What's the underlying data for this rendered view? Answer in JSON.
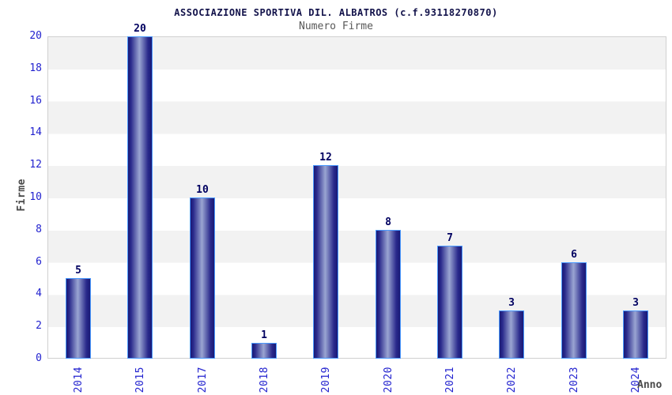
{
  "chart_data": {
    "type": "bar",
    "title": "ASSOCIAZIONE SPORTIVA DIL. ALBATROS (c.f.93118270870)",
    "subtitle": "Numero Firme",
    "xlabel": "Anno",
    "ylabel": "Firme",
    "categories": [
      "2014",
      "2015",
      "2017",
      "2018",
      "2019",
      "2020",
      "2021",
      "2022",
      "2023",
      "2024"
    ],
    "values": [
      5,
      20,
      10,
      1,
      12,
      8,
      7,
      3,
      6,
      3
    ],
    "ylim": [
      0,
      20
    ],
    "ytick_step": 2,
    "grid": "horizontal-alternating-bands",
    "legend": "none",
    "colors": {
      "title": "#12124a",
      "subtitle": "#585858",
      "tick_label": "#2323cf",
      "value_label": "#000060",
      "axis_title": "#4a4a4a",
      "bar_dark": "#191975",
      "bar_mid": "#2a2a8c",
      "bar_light": "#9aa5d2",
      "bar_border": "#4a9aff",
      "band": "#f2f2f2",
      "band_alt": "#ffffff",
      "plot_border": "#d0d0d0"
    }
  }
}
